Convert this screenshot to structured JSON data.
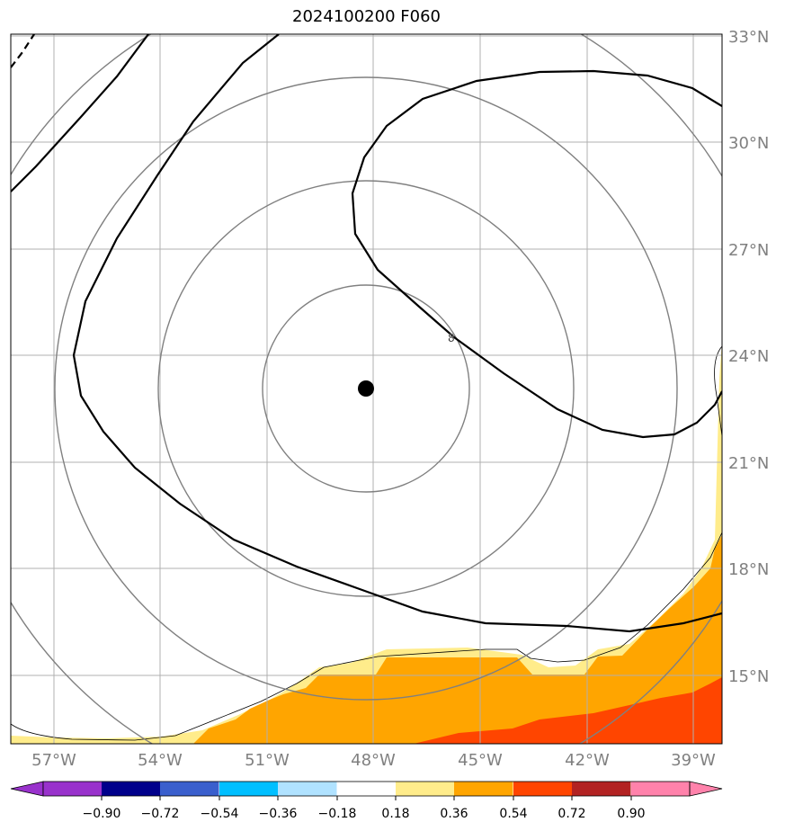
{
  "title": "2024100200 F060",
  "lat_labels": [
    "33°N",
    "30°N",
    "27°N",
    "24°N",
    "21°N",
    "18°N",
    "15°N"
  ],
  "lon_labels": [
    "57°W",
    "54°W",
    "51°W",
    "48°W",
    "45°W",
    "42°W",
    "39°W"
  ],
  "colorbar": {
    "ticks": [
      "−0.90",
      "−0.72",
      "−0.54",
      "−0.36",
      "−0.18",
      "0.18",
      "0.36",
      "0.54",
      "0.72",
      "0.90"
    ],
    "colors": [
      "#9932cc",
      "#00008b",
      "#3a5fcd",
      "#00bfff",
      "#b0e2ff",
      "#ffffff",
      "#ffec8b",
      "#ffa500",
      "#ff4500",
      "#b22222",
      "#ff82ab"
    ]
  },
  "map_colors": {
    "low": "#ffec8b",
    "mid": "#ffa500",
    "high": "#ff4500"
  }
}
